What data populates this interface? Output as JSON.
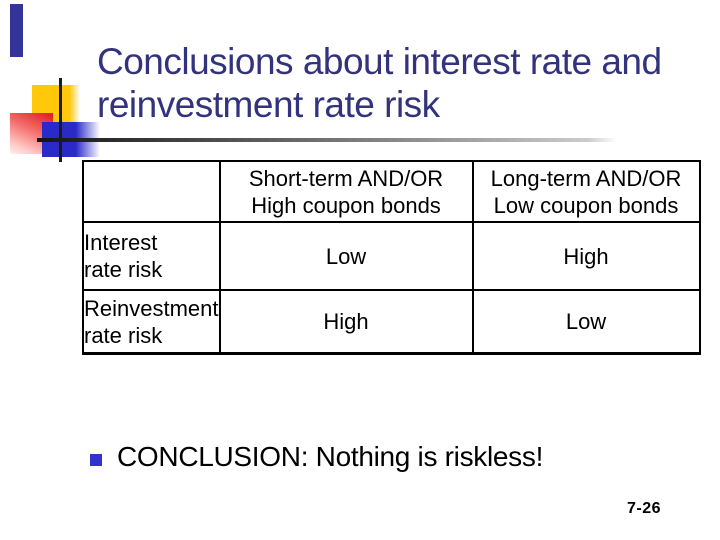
{
  "slide": {
    "title_line1": "Conclusions about interest rate and",
    "title_line2": "reinvestment rate risk",
    "bullet": {
      "text": "CONCLUSION: Nothing is riskless!"
    },
    "page_number": "7-26",
    "table": {
      "corner": "",
      "col_headers": [
        {
          "line1": "Short-term AND/OR",
          "line2": "High coupon bonds"
        },
        {
          "line1": "Long-term AND/OR",
          "line2": "Low coupon bonds"
        }
      ],
      "rows": [
        {
          "label_line1": "Interest",
          "label_line2": "rate risk",
          "short_term": "Low",
          "long_term": "High"
        },
        {
          "label_line1": "Reinvestment",
          "label_line2": "rate risk",
          "short_term": "High",
          "long_term": "Low"
        }
      ]
    },
    "colors": {
      "title_navy": "#32327d",
      "bullet_blue": "#3333cc",
      "deco_yellow": "#ffc80a",
      "deco_red": "#e02424",
      "deco_blue": "#2a2ac8",
      "deco_navy_bar": "#333399",
      "line_black": "#1a1a1a",
      "table_border": "#000000",
      "text_black": "#000000",
      "background": "#ffffff"
    }
  }
}
